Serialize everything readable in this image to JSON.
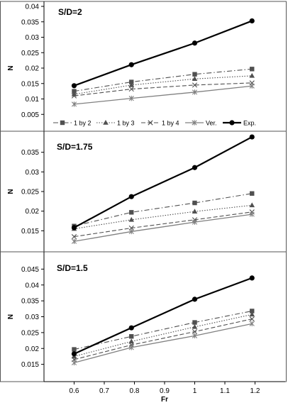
{
  "chart_data": [
    {
      "type": "line",
      "title": "S/D=2",
      "xlabel": "",
      "ylabel": "N",
      "x": [
        0.6,
        0.79,
        1.0,
        1.19
      ],
      "ylim": [
        0.0,
        0.04
      ],
      "yticks": [
        "0.005",
        "0.01",
        "0.015",
        "0.02",
        "0.025",
        "0.03",
        "0.035",
        "0.04"
      ],
      "legend_position": "bottom",
      "series": [
        {
          "name": "1 by 2",
          "values": [
            0.0125,
            0.0155,
            0.018,
            0.0197
          ]
        },
        {
          "name": "1 by 3",
          "values": [
            0.0115,
            0.0145,
            0.0165,
            0.0175
          ]
        },
        {
          "name": "1 by 4",
          "values": [
            0.011,
            0.0132,
            0.0145,
            0.0152
          ]
        },
        {
          "name": "Ver.",
          "values": [
            0.0083,
            0.0102,
            0.0122,
            0.0142
          ]
        },
        {
          "name": "Exp.",
          "values": [
            0.0143,
            0.0211,
            0.0281,
            0.0353
          ]
        }
      ]
    },
    {
      "type": "line",
      "title": "S/D=1.75",
      "xlabel": "",
      "ylabel": "N",
      "x": [
        0.6,
        0.79,
        1.0,
        1.19
      ],
      "ylim": [
        0.01,
        0.04
      ],
      "yticks": [
        "0.015",
        "0.02",
        "0.025",
        "0.03",
        "0.035"
      ],
      "series": [
        {
          "name": "1 by 2",
          "values": [
            0.0162,
            0.0197,
            0.0221,
            0.0245
          ]
        },
        {
          "name": "1 by 3",
          "values": [
            0.0155,
            0.0178,
            0.0199,
            0.0215
          ]
        },
        {
          "name": "1 by 4",
          "values": [
            0.0135,
            0.0157,
            0.0178,
            0.0198
          ]
        },
        {
          "name": "Ver.",
          "values": [
            0.0123,
            0.0148,
            0.0172,
            0.0192
          ]
        },
        {
          "name": "Exp.",
          "values": [
            0.0158,
            0.0237,
            0.0311,
            0.0389
          ]
        }
      ]
    },
    {
      "type": "line",
      "title": "S/D=1.5",
      "xlabel": "Fr",
      "ylabel": "N",
      "x": [
        0.6,
        0.79,
        1.0,
        1.19
      ],
      "ylim": [
        0.01,
        0.05
      ],
      "xticks": [
        "0.6",
        "0.7",
        "0.8",
        "0.9",
        "1",
        "1.1",
        "1.2"
      ],
      "yticks": [
        "0.015",
        "0.02",
        "0.025",
        "0.03",
        "0.035",
        "0.04",
        "0.045"
      ],
      "series": [
        {
          "name": "1 by 2",
          "values": [
            0.0197,
            0.0238,
            0.0282,
            0.0318
          ]
        },
        {
          "name": "1 by 3",
          "values": [
            0.0175,
            0.0222,
            0.0268,
            0.0307
          ]
        },
        {
          "name": "1 by 4",
          "values": [
            0.0165,
            0.0211,
            0.0253,
            0.0293
          ]
        },
        {
          "name": "Ver.",
          "values": [
            0.0155,
            0.0203,
            0.024,
            0.0278
          ]
        },
        {
          "name": "Exp.",
          "values": [
            0.0183,
            0.0265,
            0.0355,
            0.0422
          ]
        }
      ]
    }
  ],
  "styles": {
    "1 by 2": {
      "color": "#505050",
      "dash": "7,3,1.5,3",
      "marker": "square",
      "width": 1.1
    },
    "1 by 3": {
      "color": "#505050",
      "dash": "1.5,2",
      "marker": "triangle",
      "width": 1.1
    },
    "1 by 4": {
      "color": "#505050",
      "dash": "6,3",
      "marker": "x",
      "width": 1.1
    },
    "Ver.": {
      "color": "#808080",
      "dash": "",
      "marker": "star",
      "width": 1.3
    },
    "Exp.": {
      "color": "#000000",
      "dash": "",
      "marker": "circle",
      "width": 2.2
    }
  }
}
